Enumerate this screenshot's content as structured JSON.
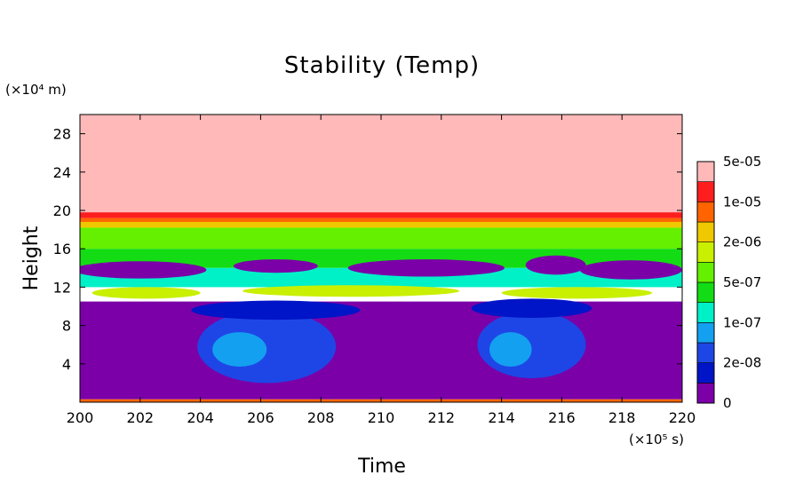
{
  "chart_data": {
    "type": "heatmap",
    "title": "Stability (Temp)",
    "xlabel": "Time",
    "ylabel": "Height",
    "x_unit_label": "(×10⁵ s)",
    "y_unit_label": "(×10⁴ m)",
    "xlim": [
      200,
      220
    ],
    "ylim": [
      0,
      30
    ],
    "x_ticks": [
      "200",
      "202",
      "204",
      "206",
      "208",
      "210",
      "212",
      "214",
      "216",
      "218",
      "220"
    ],
    "y_ticks": [
      "4",
      "8",
      "12",
      "16",
      "20",
      "24",
      "28"
    ],
    "x_tick_values": [
      200,
      202,
      204,
      206,
      208,
      210,
      212,
      214,
      216,
      218,
      220
    ],
    "y_tick_values": [
      4,
      8,
      12,
      16,
      20,
      24,
      28
    ],
    "legend_position": "right",
    "colorbar": {
      "labels": [
        "0",
        "2e-08",
        "1e-07",
        "5e-07",
        "2e-06",
        "1e-05",
        "5e-05"
      ],
      "colors": [
        "#7b00a8",
        "#0014c8",
        "#1e46e6",
        "#14a0f0",
        "#00f0c8",
        "#14dc14",
        "#64f000",
        "#c8f000",
        "#f0c800",
        "#ff6400",
        "#ff1e1e",
        "#ffb9b9"
      ]
    },
    "regions": [
      {
        "name": "upper-layer",
        "level": 11,
        "x": [
          200,
          220
        ],
        "y": [
          19.8,
          30
        ]
      },
      {
        "name": "inversion-red",
        "level": 10,
        "x": [
          200,
          220
        ],
        "y": [
          19.2,
          19.8
        ]
      },
      {
        "name": "inversion-orange",
        "level": 9,
        "x": [
          200,
          220
        ],
        "y": [
          18.8,
          19.2
        ]
      },
      {
        "name": "inversion-yellow",
        "level": 8,
        "x": [
          200,
          220
        ],
        "y": [
          18.2,
          18.8
        ]
      },
      {
        "name": "mid-green-light",
        "level": 6,
        "x": [
          200,
          220
        ],
        "y": [
          16.0,
          18.2
        ]
      },
      {
        "name": "mid-green",
        "level": 5,
        "x": [
          200,
          220
        ],
        "y": [
          14.0,
          16.0
        ]
      },
      {
        "name": "mid-cyan",
        "level": 4,
        "x": [
          200,
          220
        ],
        "y": [
          12.0,
          14.0
        ]
      },
      {
        "name": "lower-purple",
        "level": 0,
        "x": [
          200,
          220
        ],
        "y": [
          0.3,
          10.5
        ]
      },
      {
        "name": "surface-line",
        "level": 9,
        "x": [
          200,
          220
        ],
        "y": [
          0,
          0.3
        ]
      }
    ],
    "features": [
      {
        "name": "blue-cell-1",
        "level": 2,
        "x_center": 206.2,
        "y_center": 5.8,
        "x_half": 2.3,
        "y_half": 3.8
      },
      {
        "name": "blue-cell-2",
        "level": 2,
        "x_center": 215.0,
        "y_center": 6.0,
        "x_half": 1.8,
        "y_half": 3.5
      },
      {
        "name": "cyan-core-1",
        "level": 3,
        "x_center": 205.3,
        "y_center": 5.5,
        "x_half": 0.9,
        "y_half": 1.8
      },
      {
        "name": "cyan-core-2",
        "level": 3,
        "x_center": 214.3,
        "y_center": 5.5,
        "x_half": 0.7,
        "y_half": 1.8
      },
      {
        "name": "purple-pocket-1",
        "level": 0,
        "x_center": 202.0,
        "y_center": 13.8,
        "x_half": 2.2,
        "y_half": 0.9
      },
      {
        "name": "purple-pocket-2",
        "level": 0,
        "x_center": 206.5,
        "y_center": 14.2,
        "x_half": 1.4,
        "y_half": 0.7
      },
      {
        "name": "purple-pocket-3",
        "level": 0,
        "x_center": 211.5,
        "y_center": 14.0,
        "x_half": 2.6,
        "y_half": 0.9
      },
      {
        "name": "purple-pocket-4",
        "level": 0,
        "x_center": 215.8,
        "y_center": 14.3,
        "x_half": 1.0,
        "y_half": 1.0
      },
      {
        "name": "purple-pocket-5",
        "level": 0,
        "x_center": 218.3,
        "y_center": 13.8,
        "x_half": 1.7,
        "y_half": 1.0
      },
      {
        "name": "yellow-tongue-1",
        "level": 7,
        "x_center": 202.2,
        "y_center": 11.4,
        "x_half": 1.8,
        "y_half": 0.6
      },
      {
        "name": "yellow-tongue-2",
        "level": 7,
        "x_center": 209.0,
        "y_center": 11.6,
        "x_half": 3.6,
        "y_half": 0.6
      },
      {
        "name": "yellow-tongue-3",
        "level": 7,
        "x_center": 216.5,
        "y_center": 11.4,
        "x_half": 2.5,
        "y_half": 0.6
      },
      {
        "name": "blue-band-1",
        "level": 1,
        "x_center": 206.5,
        "y_center": 9.6,
        "x_half": 2.8,
        "y_half": 1.0
      },
      {
        "name": "blue-band-2",
        "level": 1,
        "x_center": 215.0,
        "y_center": 9.8,
        "x_half": 2.0,
        "y_half": 1.0
      }
    ]
  }
}
